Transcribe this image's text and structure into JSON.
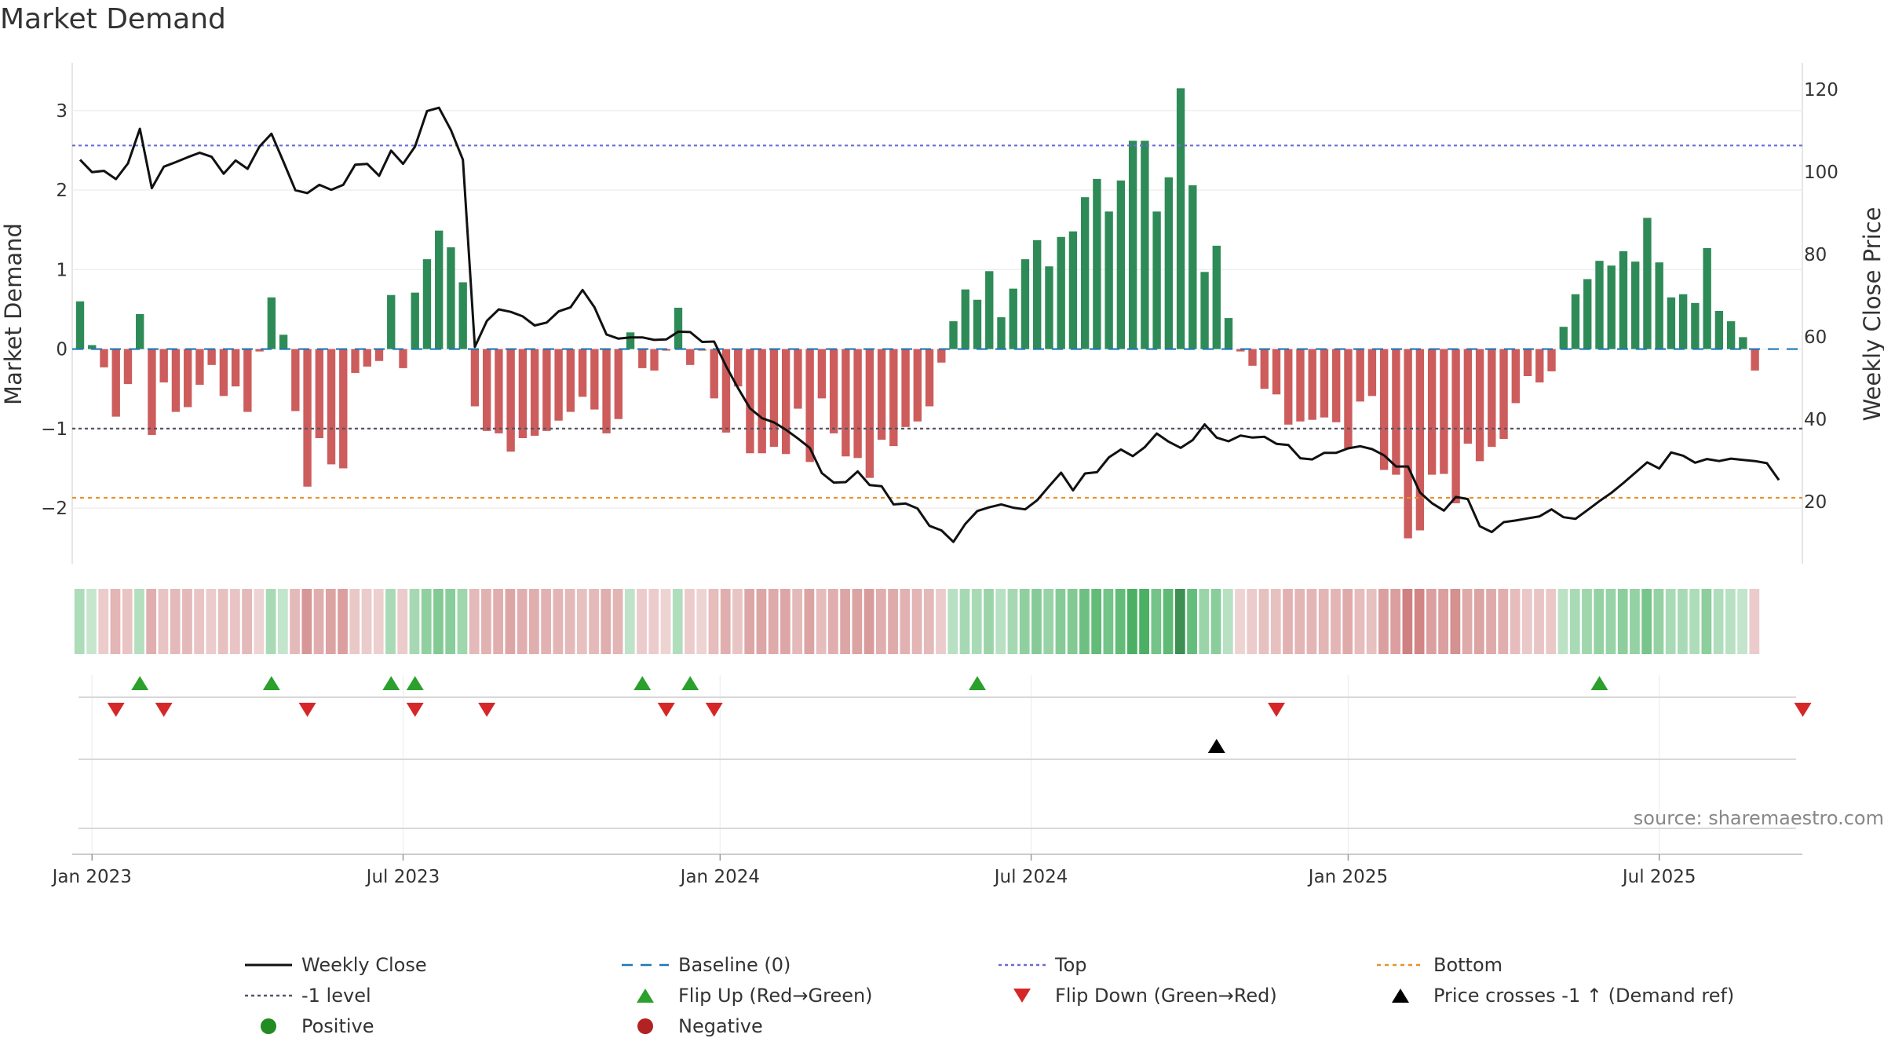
{
  "title": "Market Demand",
  "source": "source: sharemaestro.com",
  "chart_data": {
    "type": "bar",
    "title": "Market Demand",
    "ylabel": "Market Demand",
    "y2label": "Weekly Close Price",
    "ylim": [
      -2.7,
      3.6
    ],
    "y2lim": [
      5.0,
      126.5
    ],
    "yticks": [
      {
        "v": 3,
        "label": "3"
      },
      {
        "v": 2,
        "label": "2"
      },
      {
        "v": 1,
        "label": "1"
      },
      {
        "v": 0,
        "label": "0"
      },
      {
        "v": -1,
        "label": "−1"
      },
      {
        "v": -2,
        "label": "−2"
      }
    ],
    "y2ticks": [
      {
        "v": 120,
        "label": "120"
      },
      {
        "v": 100,
        "label": "100"
      },
      {
        "v": 80,
        "label": "80"
      },
      {
        "v": 60,
        "label": "60"
      },
      {
        "v": 40,
        "label": "40"
      },
      {
        "v": 20,
        "label": "20"
      }
    ],
    "xticks": [
      {
        "week": 1,
        "label": "Jan 2023"
      },
      {
        "week": 27,
        "label": "Jul 2023"
      },
      {
        "week": 53.5,
        "label": "Jan 2024"
      },
      {
        "week": 79.5,
        "label": "Jul 2024"
      },
      {
        "week": 106,
        "label": "Jan 2025"
      },
      {
        "week": 132,
        "label": "Jul 2025"
      }
    ],
    "levels": {
      "top": 2.56,
      "minus1": -1.0,
      "bottom": -1.87,
      "baseline": 0
    },
    "colors": {
      "positive": "#2e8b57",
      "negative": "#cd5c5c",
      "price": "#111111",
      "top": "#6a6ad8",
      "minus1": "#555566",
      "bottom": "#e8902a",
      "baseline": "#1f77b4",
      "flip_up": "#2ca02c",
      "flip_down": "#d62728",
      "cross": "#000000"
    },
    "demand": [
      0.6,
      0.05,
      -0.23,
      -0.85,
      -0.44,
      0.44,
      -1.08,
      -0.42,
      -0.79,
      -0.73,
      -0.45,
      -0.2,
      -0.59,
      -0.47,
      -0.79,
      -0.03,
      0.65,
      0.18,
      -0.78,
      -1.73,
      -1.12,
      -1.45,
      -1.5,
      -0.3,
      -0.22,
      -0.15,
      0.68,
      -0.24,
      0.71,
      1.13,
      1.49,
      1.28,
      0.84,
      -0.72,
      -1.03,
      -1.06,
      -1.29,
      -1.12,
      -1.09,
      -1.03,
      -0.9,
      -0.79,
      -0.6,
      -0.76,
      -1.06,
      -0.88,
      0.21,
      -0.24,
      -0.27,
      -0.02,
      0.52,
      -0.2,
      -0.02,
      -0.62,
      -1.05,
      -0.47,
      -1.31,
      -1.31,
      -1.23,
      -1.32,
      -0.75,
      -1.42,
      -0.62,
      -1.06,
      -1.35,
      -1.37,
      -1.62,
      -1.14,
      -1.22,
      -0.98,
      -0.91,
      -0.72,
      -0.17,
      0.35,
      0.75,
      0.62,
      0.98,
      0.4,
      0.76,
      1.13,
      1.37,
      1.04,
      1.41,
      1.48,
      1.91,
      2.14,
      1.73,
      2.12,
      2.62,
      2.62,
      1.73,
      2.16,
      3.28,
      2.06,
      0.97,
      1.3,
      0.39,
      -0.03,
      -0.21,
      -0.5,
      -0.57,
      -0.95,
      -0.91,
      -0.89,
      -0.86,
      -0.92,
      -1.25,
      -0.66,
      -0.59,
      -1.52,
      -1.58,
      -2.38,
      -2.28,
      -1.58,
      -1.57,
      -1.94,
      -1.19,
      -1.41,
      -1.23,
      -1.13,
      -0.68,
      -0.34,
      -0.42,
      -0.28,
      0.28,
      0.69,
      0.88,
      1.11,
      1.05,
      1.23,
      1.1,
      1.65,
      1.09,
      0.65,
      0.69,
      0.58,
      1.27,
      0.48,
      0.35,
      0.15,
      -0.27
    ],
    "price": [
      103.0,
      100.0,
      100.3,
      98.3,
      102.1,
      110.5,
      96.1,
      101.3,
      102.4,
      103.6,
      104.7,
      103.7,
      99.6,
      102.8,
      100.8,
      106.2,
      109.3,
      102.5,
      95.6,
      94.9,
      96.9,
      95.7,
      96.9,
      101.8,
      102.0,
      99.1,
      105.2,
      102.0,
      106.2,
      114.8,
      115.6,
      110.2,
      103.0,
      57.6,
      63.9,
      66.7,
      66.1,
      65.0,
      62.8,
      63.5,
      66.2,
      67.2,
      71.4,
      67.2,
      60.6,
      59.6,
      59.9,
      59.9,
      59.3,
      59.4,
      61.3,
      61.2,
      58.8,
      58.9,
      52.9,
      47.6,
      42.7,
      40.3,
      39.3,
      37.5,
      35.4,
      33.1,
      27.0,
      24.7,
      24.8,
      27.4,
      24.1,
      23.8,
      19.4,
      19.6,
      18.4,
      14.2,
      13.1,
      10.3,
      14.7,
      17.8,
      18.7,
      19.4,
      18.6,
      18.2,
      20.4,
      23.8,
      27.1,
      22.8,
      26.9,
      27.2,
      30.8,
      32.7,
      31.1,
      33.3,
      36.6,
      34.6,
      33.1,
      35.0,
      38.8,
      35.6,
      34.7,
      36.1,
      35.6,
      35.8,
      34.1,
      33.8,
      30.6,
      30.3,
      31.9,
      31.9,
      33.0,
      33.5,
      32.8,
      31.3,
      28.6,
      28.6,
      22.3,
      19.7,
      17.9,
      21.2,
      20.7,
      14.1,
      12.7,
      15.1,
      15.5,
      16.0,
      16.5,
      18.2,
      16.3,
      15.9,
      18.0,
      20.2,
      22.2,
      24.6,
      27.1,
      29.6,
      28.1,
      32.0,
      31.2,
      29.5,
      30.4,
      29.9,
      30.5,
      30.2,
      29.9,
      29.4,
      25.3
    ],
    "flip_up_weeks": [
      5,
      16,
      26,
      28,
      47,
      51,
      75,
      127
    ],
    "flip_down_weeks": [
      3,
      7,
      19,
      28,
      34,
      49,
      53,
      100,
      144
    ],
    "price_cross_weeks": [
      95
    ],
    "legend": {
      "weekly_close": "Weekly Close",
      "baseline": "Baseline (0)",
      "top": "Top",
      "bottom": "Bottom",
      "minus1": "-1 level",
      "flip_up": "Flip Up (Red→Green)",
      "flip_down": "Flip Down (Green→Red)",
      "cross": "Price crosses -1 ↑ (Demand ref)",
      "positive": "Positive",
      "negative": "Negative"
    }
  }
}
